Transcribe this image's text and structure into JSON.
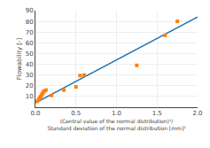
{
  "chart_data": {
    "type": "scatter",
    "xlabel": "(Central value of the normal distribution)²/\nStandard deviation of the normal distribution [mm]²",
    "ylabel": "Flowability [-]",
    "series": [
      {
        "type": "line",
        "x": [
          0.0,
          2.0
        ],
        "values": [
          4.0,
          84.0
        ]
      },
      {
        "type": "scatter",
        "marker": "square",
        "x": [
          0.02,
          0.04,
          0.05,
          0.06,
          0.07,
          0.08,
          0.09,
          0.1,
          0.11,
          0.13,
          0.2,
          0.35,
          0.5,
          0.55,
          0.6,
          1.25,
          1.6,
          1.75
        ],
        "values": [
          5.5,
          7.0,
          8.5,
          9.5,
          10.5,
          12.0,
          13.0,
          14.5,
          15.0,
          16.0,
          11.0,
          16.0,
          19.0,
          29.5,
          30.0,
          39.0,
          67.0,
          80.0
        ]
      }
    ],
    "xlim": [
      0,
      2
    ],
    "ylim": [
      0,
      90
    ],
    "xticks": [
      {
        "value": 0,
        "label": "0.0"
      },
      0.5,
      {
        "value": 1,
        "label": "1.0"
      },
      1.5,
      {
        "value": 2,
        "label": "2.0"
      }
    ],
    "yticks": [
      10,
      20,
      30,
      40,
      50,
      60,
      70,
      80,
      90
    ],
    "grid": true
  }
}
